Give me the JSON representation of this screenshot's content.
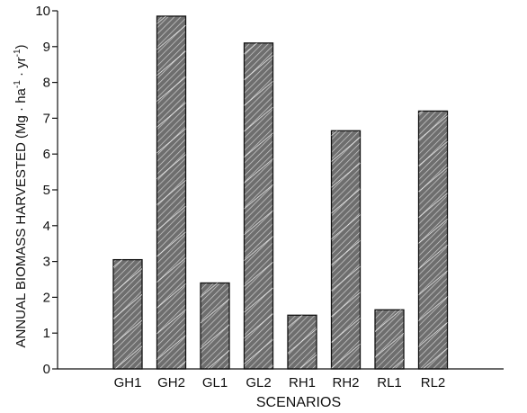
{
  "chart_data": {
    "type": "bar",
    "categories": [
      "GH1",
      "GH2",
      "GL1",
      "GL2",
      "RH1",
      "RH2",
      "RL1",
      "RL2"
    ],
    "values": [
      3.05,
      9.85,
      2.4,
      9.1,
      1.5,
      6.65,
      1.65,
      7.2
    ],
    "xlabel": "SCENARIOS",
    "ylabel_main": "ANNUAL BIOMASS HARVESTED (Mg",
    "ylabel_sep": " · ",
    "ylabel_ha": "ha",
    "ylabel_ha_exp": "-1",
    "ylabel_yr": "yr",
    "ylabel_yr_exp": "-1",
    "ylabel_close": ")",
    "ylim": [
      0,
      10
    ],
    "yticks": [
      "0",
      "1",
      "2",
      "3",
      "4",
      "5",
      "6",
      "7",
      "8",
      "9",
      "10"
    ],
    "grid": false,
    "legend": "none",
    "bar_color": "#8a8a8a",
    "hatch_color": "#ffffff",
    "stroke_color": "#111111"
  }
}
